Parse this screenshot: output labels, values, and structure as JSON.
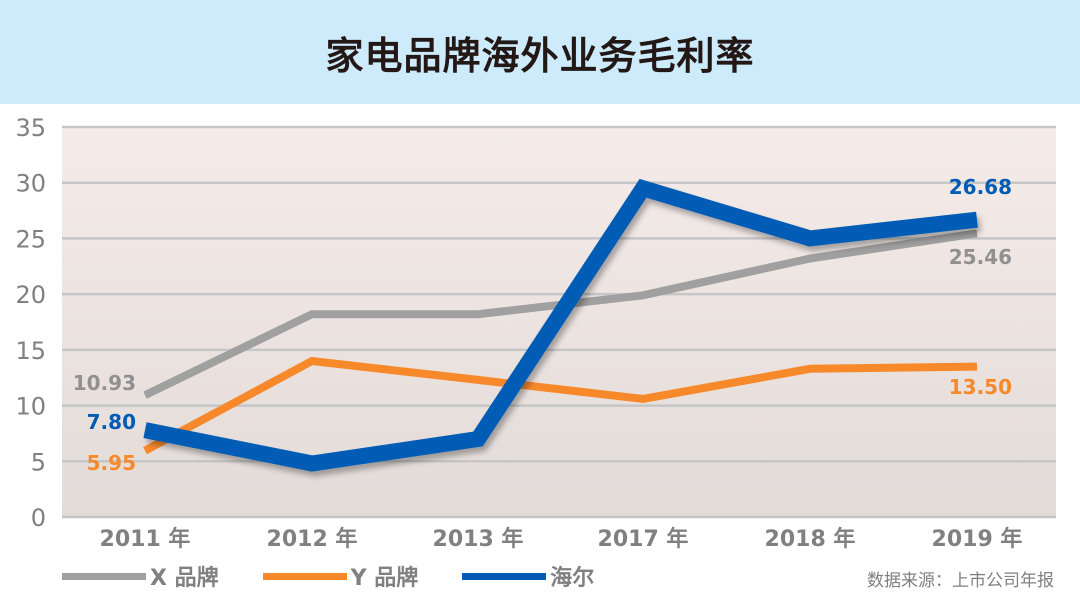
{
  "title": "家电品牌海外业务毛利率",
  "source": "数据来源：上市公司年报",
  "legend": [
    {
      "label": "X 品牌",
      "color": "#a0a0a0"
    },
    {
      "label": "Y 品牌",
      "color": "#f7892b"
    },
    {
      "label": "海尔",
      "color": "#005bb5"
    }
  ],
  "chart_data": {
    "type": "line",
    "title": "家电品牌海外业务毛利率",
    "xlabel": "",
    "ylabel": "",
    "categories": [
      "2011 年",
      "2012 年",
      "2013 年",
      "2017 年",
      "2018 年",
      "2019 年"
    ],
    "yticks": [
      0,
      5,
      10,
      15,
      20,
      25,
      30,
      35
    ],
    "ylim": [
      0,
      35
    ],
    "grid": true,
    "legend_position": "bottom-left",
    "series": [
      {
        "name": "X 品牌",
        "color": "#a0a0a0",
        "values": [
          10.93,
          18.2,
          18.2,
          19.9,
          23.2,
          25.46
        ]
      },
      {
        "name": "Y 品牌",
        "color": "#f7892b",
        "values": [
          5.95,
          14.0,
          12.3,
          10.6,
          13.3,
          13.5
        ]
      },
      {
        "name": "海尔",
        "color": "#005bb5",
        "values": [
          7.8,
          4.8,
          7.0,
          29.5,
          25.0,
          26.68
        ]
      }
    ],
    "annotations": [
      {
        "series": "X 品牌",
        "point": 0,
        "text": "10.93"
      },
      {
        "series": "X 品牌",
        "point": 5,
        "text": "25.46"
      },
      {
        "series": "Y 品牌",
        "point": 0,
        "text": "5.95"
      },
      {
        "series": "Y 品牌",
        "point": 5,
        "text": "13.50"
      },
      {
        "series": "海尔",
        "point": 0,
        "text": "7.80"
      },
      {
        "series": "海尔",
        "point": 5,
        "text": "26.68"
      }
    ]
  }
}
